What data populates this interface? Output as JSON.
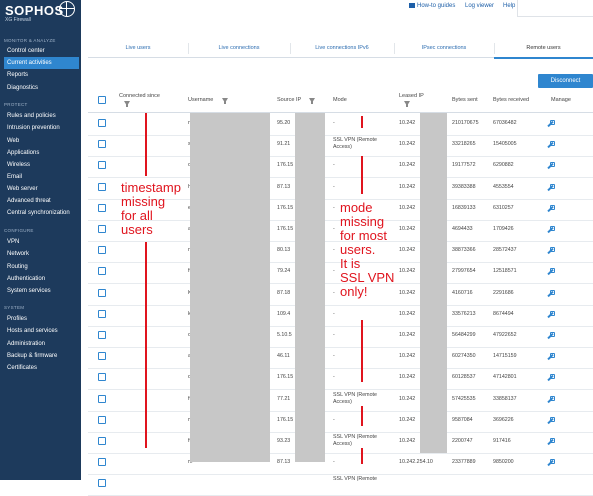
{
  "brand": {
    "name": "SOPHOS",
    "product": "XG Firewall"
  },
  "sidebar": {
    "sections": [
      {
        "title": "MONITOR & ANALYZE",
        "items": [
          "Control center",
          "Current activities",
          "Reports",
          "Diagnostics"
        ]
      },
      {
        "title": "PROTECT",
        "items": [
          "Rules and policies",
          "Intrusion prevention",
          "Web",
          "Applications",
          "Wireless",
          "Email",
          "Web server",
          "Advanced threat",
          "Central synchronization"
        ]
      },
      {
        "title": "CONFIGURE",
        "items": [
          "VPN",
          "Network",
          "Routing",
          "Authentication",
          "System services"
        ]
      },
      {
        "title": "SYSTEM",
        "items": [
          "Profiles",
          "Hosts and services",
          "Administration",
          "Backup & firmware",
          "Certificates"
        ]
      }
    ],
    "active": "Current activities"
  },
  "topbar": {
    "how_to": "How-to guides",
    "log_viewer": "Log viewer",
    "help": "Help"
  },
  "tabs": [
    "Live users",
    "Live connections",
    "Live connections IPv6",
    "IPsec connections",
    "Remote users"
  ],
  "active_tab": "Remote users",
  "disconnect_label": "Disconnect",
  "table": {
    "headers": {
      "connected": "Connected since",
      "username": "Username",
      "source_ip": "Source IP",
      "mode": "Mode",
      "leased_ip": "Leased IP",
      "bytes_sent": "Bytes sent",
      "bytes_received": "Bytes received",
      "manage": "Manage"
    },
    "rows": [
      {
        "user": "n",
        "src": "95.20",
        "mode": "-",
        "leased": "10.242",
        "sent": "210170675",
        "recv": "67036482"
      },
      {
        "user": "s",
        "src": "91.21",
        "mode": "SSL VPN (Remote Access)",
        "leased": "10.242",
        "sent": "33218265",
        "recv": "15405005"
      },
      {
        "user": "o",
        "src": "176.15",
        "mode": "-",
        "leased": "10.242",
        "sent": "19177572",
        "recv": "6290882"
      },
      {
        "user": "h",
        "src": "87.13",
        "mode": "-",
        "leased": "10.242",
        "sent": "39383388",
        "recv": "4553554"
      },
      {
        "user": "e",
        "src": "176.15",
        "mode": "-",
        "leased": "10.242",
        "sent": "16839133",
        "recv": "6310257"
      },
      {
        "user": "a",
        "src": "176.15",
        "mode": "-",
        "leased": "10.242",
        "sent": "4694433",
        "recv": "1709426"
      },
      {
        "user": "n",
        "src": "80.13",
        "mode": "-",
        "leased": "10.242",
        "sent": "38873366",
        "recv": "28572437"
      },
      {
        "user": "ft",
        "src": "79.24",
        "mode": "-",
        "leased": "10.242",
        "sent": "27997654",
        "recv": "12518571"
      },
      {
        "user": "K",
        "src": "87.18",
        "mode": "-",
        "leased": "10.242",
        "sent": "4160716",
        "recv": "2291686"
      },
      {
        "user": "k b",
        "src": "109.4",
        "mode": "-",
        "leased": "10.242",
        "sent": "33576213",
        "recv": "8674494"
      },
      {
        "user": "o",
        "src": "5.10.5",
        "mode": "-",
        "leased": "10.242",
        "sent": "56484299",
        "recv": "47922652"
      },
      {
        "user": "a",
        "src": "46.11",
        "mode": "-",
        "leased": "10.242",
        "sent": "60274350",
        "recv": "14715159"
      },
      {
        "user": "d",
        "src": "176.15",
        "mode": "-",
        "leased": "10.242",
        "sent": "60128537",
        "recv": "47142801"
      },
      {
        "user": "ft b",
        "src": "77.21",
        "mode": "SSL VPN (Remote Access)",
        "leased": "10.242",
        "sent": "57425535",
        "recv": "33858137"
      },
      {
        "user": "m",
        "src": "176.15",
        "mode": "-",
        "leased": "10.242",
        "sent": "9587084",
        "recv": "3696226"
      },
      {
        "user": "ft",
        "src": "93.23",
        "mode": "SSL VPN (Remote Access)",
        "leased": "10.242",
        "sent": "2200747",
        "recv": "917416"
      },
      {
        "user": "m",
        "src": "87.13",
        "mode": "-",
        "leased": "10.242.254.10",
        "sent": "23377889",
        "recv": "9850200"
      },
      {
        "user": "",
        "src": "",
        "mode": "SSL VPN (Remote",
        "leased": "",
        "sent": "",
        "recv": ""
      }
    ]
  },
  "annotations": {
    "timestamp": [
      "timestamp",
      "missing",
      "for all",
      "users"
    ],
    "mode": [
      "mode",
      "missing",
      "for most",
      "users.",
      "It is",
      "SSL VPN",
      "only!"
    ]
  },
  "colors": {
    "sidebar": "#1d3a5c",
    "accent": "#2f86cf",
    "annotation": "#e0141e"
  }
}
